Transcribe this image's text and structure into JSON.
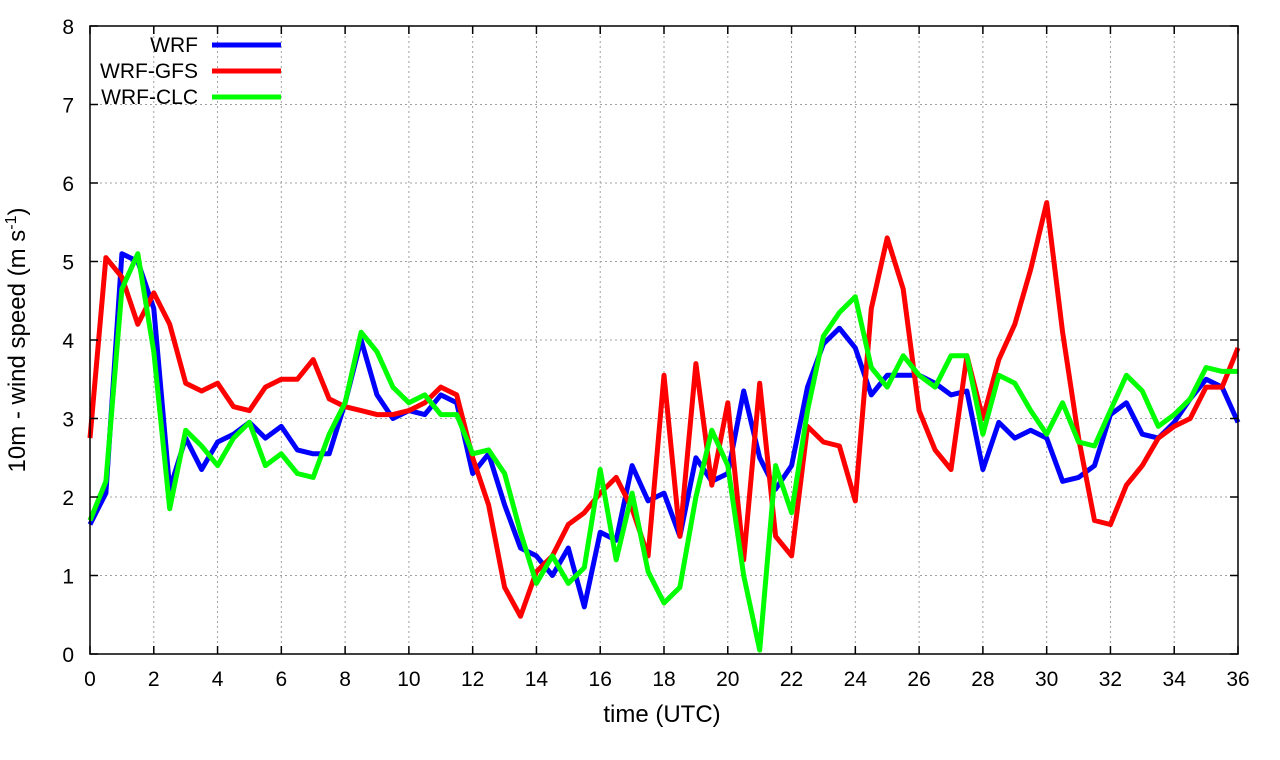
{
  "chart_data": {
    "type": "line",
    "xlabel": "time (UTC)",
    "ylabel_main": "10m - wind speed  (m s",
    "ylabel_sup": "-1",
    "ylabel_tail": ")",
    "xlim": [
      0,
      36
    ],
    "ylim": [
      0,
      8
    ],
    "x_ticks": [
      0,
      2,
      4,
      6,
      8,
      10,
      12,
      14,
      16,
      18,
      20,
      22,
      24,
      26,
      28,
      30,
      32,
      34,
      36
    ],
    "x_tick_labels": [
      "0",
      "2",
      "4",
      "6",
      "8",
      "10",
      "12",
      "14",
      "16",
      "18",
      "20",
      "22",
      "24",
      "26",
      "28",
      "30",
      "32",
      "34",
      "36"
    ],
    "y_ticks": [
      0,
      1,
      2,
      3,
      4,
      5,
      6,
      7,
      8
    ],
    "y_tick_labels": [
      "0",
      "1",
      "2",
      "3",
      "4",
      "5",
      "6",
      "7",
      "8"
    ],
    "grid": true,
    "legend_position": "top-left",
    "x": [
      0,
      0.5,
      1,
      1.5,
      2,
      2.5,
      3,
      3.5,
      4,
      4.5,
      5,
      5.5,
      6,
      6.5,
      7,
      7.5,
      8,
      8.5,
      9,
      9.5,
      10,
      10.5,
      11,
      11.5,
      12,
      12.5,
      13,
      13.5,
      14,
      14.5,
      15,
      15.5,
      16,
      16.5,
      17,
      17.5,
      18,
      18.5,
      19,
      19.5,
      20,
      20.5,
      21,
      21.5,
      22,
      22.5,
      23,
      23.5,
      24,
      24.5,
      25,
      25.5,
      26,
      26.5,
      27,
      27.5,
      28,
      28.5,
      29,
      29.5,
      30,
      30.5,
      31,
      31.5,
      32,
      32.5,
      33,
      33.5,
      34,
      34.5,
      35,
      35.5,
      36
    ],
    "series": [
      {
        "name": "WRF",
        "color": "#0000ff",
        "values": [
          1.65,
          2.05,
          5.1,
          5.0,
          4.4,
          2.1,
          2.75,
          2.35,
          2.7,
          2.8,
          2.95,
          2.75,
          2.9,
          2.6,
          2.55,
          2.55,
          3.2,
          4.0,
          3.3,
          3.0,
          3.1,
          3.05,
          3.3,
          3.2,
          2.3,
          2.55,
          1.9,
          1.35,
          1.25,
          1.0,
          1.35,
          0.6,
          1.55,
          1.45,
          2.4,
          1.95,
          2.05,
          1.5,
          2.5,
          2.2,
          2.3,
          3.35,
          2.5,
          2.1,
          2.4,
          3.4,
          3.95,
          4.15,
          3.9,
          3.3,
          3.55,
          3.55,
          3.55,
          3.45,
          3.3,
          3.35,
          2.35,
          2.95,
          2.75,
          2.85,
          2.75,
          2.2,
          2.25,
          2.4,
          3.05,
          3.2,
          2.8,
          2.75,
          2.95,
          3.25,
          3.5,
          3.4,
          2.95
        ]
      },
      {
        "name": "WRF-GFS",
        "color": "#ff0000",
        "values": [
          2.75,
          5.05,
          4.8,
          4.2,
          4.6,
          4.2,
          3.45,
          3.35,
          3.45,
          3.15,
          3.1,
          3.4,
          3.5,
          3.5,
          3.75,
          3.25,
          3.15,
          3.1,
          3.05,
          3.05,
          3.1,
          3.2,
          3.4,
          3.3,
          2.5,
          1.9,
          0.85,
          0.48,
          1.05,
          1.25,
          1.65,
          1.8,
          2.05,
          2.25,
          1.85,
          1.25,
          3.55,
          1.5,
          3.7,
          2.15,
          3.2,
          1.2,
          3.45,
          1.5,
          1.25,
          2.9,
          2.7,
          2.65,
          1.95,
          4.4,
          5.3,
          4.65,
          3.1,
          2.6,
          2.35,
          3.8,
          3.0,
          3.75,
          4.2,
          4.9,
          5.75,
          4.1,
          2.75,
          1.7,
          1.65,
          2.15,
          2.4,
          2.75,
          2.9,
          3.0,
          3.4,
          3.4,
          3.9
        ]
      },
      {
        "name": "WRF-CLC",
        "color": "#00ff00",
        "values": [
          1.7,
          2.2,
          4.65,
          5.1,
          3.85,
          1.85,
          2.85,
          2.65,
          2.4,
          2.75,
          2.95,
          2.4,
          2.55,
          2.3,
          2.25,
          2.8,
          3.2,
          4.1,
          3.85,
          3.4,
          3.2,
          3.3,
          3.05,
          3.05,
          2.55,
          2.6,
          2.3,
          1.55,
          0.9,
          1.25,
          0.9,
          1.1,
          2.35,
          1.2,
          2.05,
          1.05,
          0.65,
          0.85,
          2.0,
          2.85,
          2.4,
          1.0,
          0.05,
          2.4,
          1.8,
          3.1,
          4.05,
          4.35,
          4.55,
          3.65,
          3.4,
          3.8,
          3.55,
          3.4,
          3.8,
          3.8,
          2.8,
          3.55,
          3.45,
          3.1,
          2.8,
          3.2,
          2.7,
          2.65,
          3.1,
          3.55,
          3.35,
          2.9,
          3.05,
          3.25,
          3.65,
          3.6,
          3.6
        ]
      }
    ]
  }
}
